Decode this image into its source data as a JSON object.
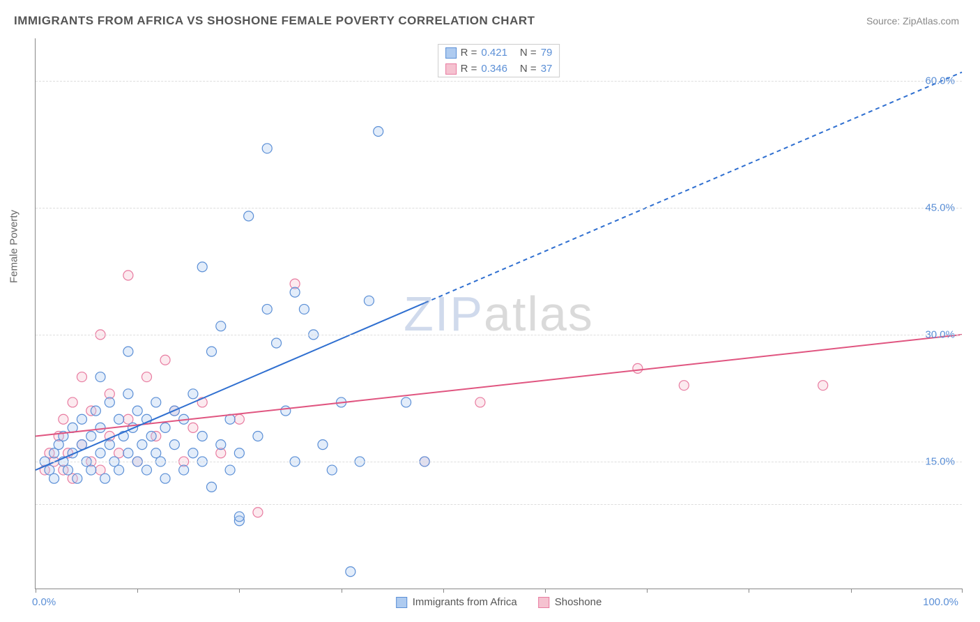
{
  "header": {
    "title": "IMMIGRANTS FROM AFRICA VS SHOSHONE FEMALE POVERTY CORRELATION CHART",
    "source": "Source: ZipAtlas.com"
  },
  "ylabel": "Female Poverty",
  "watermark": {
    "part1": "ZIP",
    "part2": "atlas"
  },
  "chart": {
    "type": "scatter",
    "xlim": [
      0,
      100
    ],
    "ylim": [
      0,
      65
    ],
    "x_tick_positions": [
      0,
      11,
      22,
      33,
      44,
      55,
      66,
      77,
      88,
      100
    ],
    "x_tick_labels": {
      "0": "0.0%",
      "100": "100.0%"
    },
    "y_gridlines": [
      10,
      15,
      30,
      45,
      60
    ],
    "y_tick_labels": {
      "15": "15.0%",
      "30": "30.0%",
      "45": "45.0%",
      "60": "60.0%"
    },
    "grid_color": "#dddddd",
    "background_color": "#ffffff",
    "tick_label_color": "#5b8fd6",
    "marker_radius": 7,
    "marker_stroke_width": 1.2,
    "marker_fill_opacity": 0.35,
    "series": {
      "africa": {
        "label": "Immigrants from Africa",
        "color_fill": "#aecbf0",
        "color_stroke": "#5b8fd6",
        "R": "0.421",
        "N": "79",
        "trendline": {
          "x1": 0,
          "y1": 14,
          "x2": 100,
          "y2": 61,
          "solid_until_x": 42,
          "stroke": "#2f6fd0",
          "stroke_width": 2,
          "dash": "6,5"
        },
        "points": [
          [
            1,
            15
          ],
          [
            1.5,
            14
          ],
          [
            2,
            16
          ],
          [
            2,
            13
          ],
          [
            2.5,
            17
          ],
          [
            3,
            15
          ],
          [
            3,
            18
          ],
          [
            3.5,
            14
          ],
          [
            4,
            16
          ],
          [
            4,
            19
          ],
          [
            4.5,
            13
          ],
          [
            5,
            17
          ],
          [
            5,
            20
          ],
          [
            5.5,
            15
          ],
          [
            6,
            18
          ],
          [
            6,
            14
          ],
          [
            6.5,
            21
          ],
          [
            7,
            16
          ],
          [
            7,
            19
          ],
          [
            7.5,
            13
          ],
          [
            8,
            17
          ],
          [
            8,
            22
          ],
          [
            8.5,
            15
          ],
          [
            9,
            20
          ],
          [
            9,
            14
          ],
          [
            9.5,
            18
          ],
          [
            10,
            16
          ],
          [
            10,
            23
          ],
          [
            10.5,
            19
          ],
          [
            11,
            15
          ],
          [
            11,
            21
          ],
          [
            11.5,
            17
          ],
          [
            12,
            14
          ],
          [
            12,
            20
          ],
          [
            12.5,
            18
          ],
          [
            13,
            16
          ],
          [
            13,
            22
          ],
          [
            13.5,
            15
          ],
          [
            14,
            19
          ],
          [
            14,
            13
          ],
          [
            15,
            21
          ],
          [
            15,
            17
          ],
          [
            16,
            14
          ],
          [
            16,
            20
          ],
          [
            17,
            16
          ],
          [
            17,
            23
          ],
          [
            18,
            18
          ],
          [
            18,
            15
          ],
          [
            19,
            28
          ],
          [
            19,
            12
          ],
          [
            20,
            31
          ],
          [
            20,
            17
          ],
          [
            21,
            14
          ],
          [
            21,
            20
          ],
          [
            22,
            16
          ],
          [
            22,
            8
          ],
          [
            22,
            8.5
          ],
          [
            23,
            44
          ],
          [
            24,
            18
          ],
          [
            25,
            33
          ],
          [
            25,
            52
          ],
          [
            26,
            29
          ],
          [
            27,
            21
          ],
          [
            28,
            35
          ],
          [
            28,
            15
          ],
          [
            29,
            33
          ],
          [
            30,
            30
          ],
          [
            31,
            17
          ],
          [
            32,
            14
          ],
          [
            33,
            22
          ],
          [
            35,
            15
          ],
          [
            36,
            34
          ],
          [
            37,
            54
          ],
          [
            40,
            22
          ],
          [
            42,
            15
          ],
          [
            34,
            2
          ],
          [
            18,
            38
          ],
          [
            10,
            28
          ],
          [
            7,
            25
          ]
        ]
      },
      "shoshone": {
        "label": "Shoshone",
        "color_fill": "#f5c2d0",
        "color_stroke": "#e87ba0",
        "R": "0.346",
        "N": "37",
        "trendline": {
          "x1": 0,
          "y1": 18,
          "x2": 100,
          "y2": 30,
          "solid_until_x": 100,
          "stroke": "#e05580",
          "stroke_width": 2
        },
        "points": [
          [
            1,
            14
          ],
          [
            1.5,
            16
          ],
          [
            2,
            15
          ],
          [
            2.5,
            18
          ],
          [
            3,
            14
          ],
          [
            3,
            20
          ],
          [
            3.5,
            16
          ],
          [
            4,
            22
          ],
          [
            4,
            13
          ],
          [
            5,
            25
          ],
          [
            5,
            17
          ],
          [
            6,
            15
          ],
          [
            6,
            21
          ],
          [
            7,
            30
          ],
          [
            7,
            14
          ],
          [
            8,
            18
          ],
          [
            8,
            23
          ],
          [
            9,
            16
          ],
          [
            10,
            20
          ],
          [
            10,
            37
          ],
          [
            11,
            15
          ],
          [
            12,
            25
          ],
          [
            13,
            18
          ],
          [
            14,
            27
          ],
          [
            15,
            21
          ],
          [
            16,
            15
          ],
          [
            17,
            19
          ],
          [
            18,
            22
          ],
          [
            20,
            16
          ],
          [
            22,
            20
          ],
          [
            24,
            9
          ],
          [
            28,
            36
          ],
          [
            42,
            15
          ],
          [
            48,
            22
          ],
          [
            65,
            26
          ],
          [
            70,
            24
          ],
          [
            85,
            24
          ]
        ]
      }
    }
  },
  "stats_box": {
    "r_label": "R = ",
    "n_label": "N = ",
    "value_color": "#5b8fd6"
  },
  "legend_bottom": {
    "items": [
      "africa",
      "shoshone"
    ]
  }
}
